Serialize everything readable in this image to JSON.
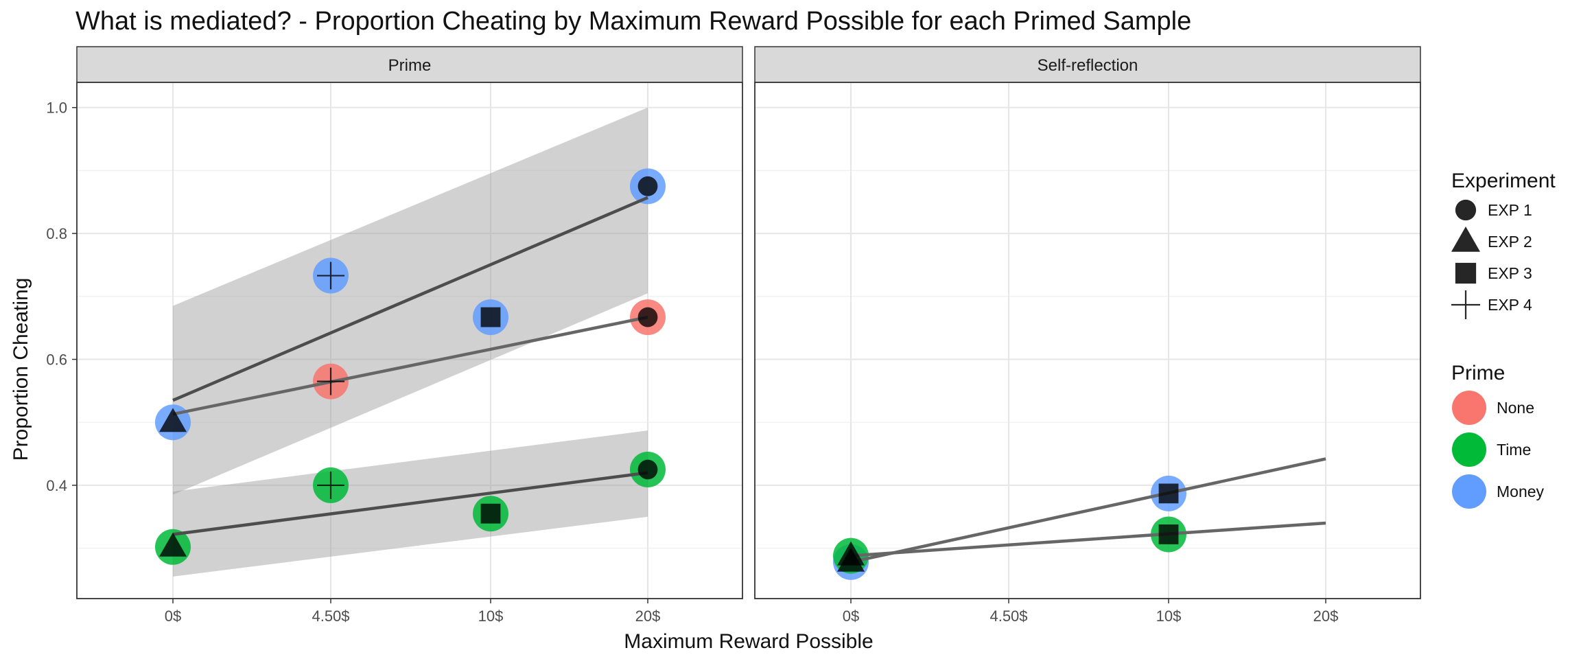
{
  "chart_data": {
    "type": "scatter",
    "title": "What is mediated? - Proportion Cheating by Maximum Reward Possible for each Primed Sample",
    "xlabel": "Maximum Reward Possible",
    "ylabel": "Proportion Cheating",
    "x_categories": [
      "0$",
      "4.50$",
      "10$",
      "20$"
    ],
    "x_values": [
      0,
      4.5,
      10,
      20
    ],
    "ylim": [
      0.22,
      1.04
    ],
    "yticks": [
      0.4,
      0.6,
      0.8,
      1.0
    ],
    "ytick_labels": [
      "0.4",
      "0.6",
      "0.8",
      "1.0"
    ],
    "grid": true,
    "legend_position": "right",
    "colors": {
      "None": "#F8766D",
      "Time": "#00BA38",
      "Money": "#619CFF"
    },
    "legend": {
      "experiment_title": "Experiment",
      "experiments": [
        "EXP 1",
        "EXP 2",
        "EXP 3",
        "EXP 4"
      ],
      "experiment_shapes": [
        "circle",
        "triangle",
        "square",
        "cross"
      ],
      "prime_title": "Prime",
      "primes": [
        "None",
        "Time",
        "Money"
      ]
    },
    "panels": [
      {
        "label": "Prime",
        "points": [
          {
            "x": 0,
            "y": 0.5,
            "prime": "Money",
            "experiment": "EXP 2"
          },
          {
            "x": 4.5,
            "y": 0.733,
            "prime": "Money",
            "experiment": "EXP 4"
          },
          {
            "x": 10,
            "y": 0.667,
            "prime": "Money",
            "experiment": "EXP 3"
          },
          {
            "x": 20,
            "y": 0.875,
            "prime": "Money",
            "experiment": "EXP 1"
          },
          {
            "x": 4.5,
            "y": 0.565,
            "prime": "None",
            "experiment": "EXP 4"
          },
          {
            "x": 20,
            "y": 0.667,
            "prime": "None",
            "experiment": "EXP 1"
          },
          {
            "x": 0,
            "y": 0.302,
            "prime": "Time",
            "experiment": "EXP 2"
          },
          {
            "x": 4.5,
            "y": 0.4,
            "prime": "Time",
            "experiment": "EXP 4"
          },
          {
            "x": 10,
            "y": 0.355,
            "prime": "Time",
            "experiment": "EXP 3"
          },
          {
            "x": 20,
            "y": 0.425,
            "prime": "Time",
            "experiment": "EXP 1"
          }
        ],
        "fits": [
          {
            "prime": "Money",
            "y_start": 0.535,
            "y_end": 0.857,
            "ci_low": [
              0.385,
              0.705
            ],
            "ci_high": [
              0.685,
              1.0
            ]
          },
          {
            "prime": "None",
            "y_start": 0.513,
            "y_end": 0.667
          },
          {
            "prime": "Time",
            "y_start": 0.322,
            "y_end": 0.42,
            "ci_low": [
              0.255,
              0.35
            ],
            "ci_high": [
              0.39,
              0.487
            ]
          }
        ]
      },
      {
        "label": "Self-reflection",
        "points": [
          {
            "x": 0,
            "y": 0.278,
            "prime": "Money",
            "experiment": "EXP 2"
          },
          {
            "x": 10,
            "y": 0.387,
            "prime": "Money",
            "experiment": "EXP 3"
          },
          {
            "x": 0,
            "y": 0.288,
            "prime": "Time",
            "experiment": "EXP 2"
          },
          {
            "x": 10,
            "y": 0.322,
            "prime": "Time",
            "experiment": "EXP 3"
          }
        ],
        "fits": [
          {
            "prime": "Money",
            "y_start": 0.278,
            "y_end": 0.442
          },
          {
            "prime": "Time",
            "y_start": 0.288,
            "y_end": 0.34
          }
        ]
      }
    ]
  }
}
